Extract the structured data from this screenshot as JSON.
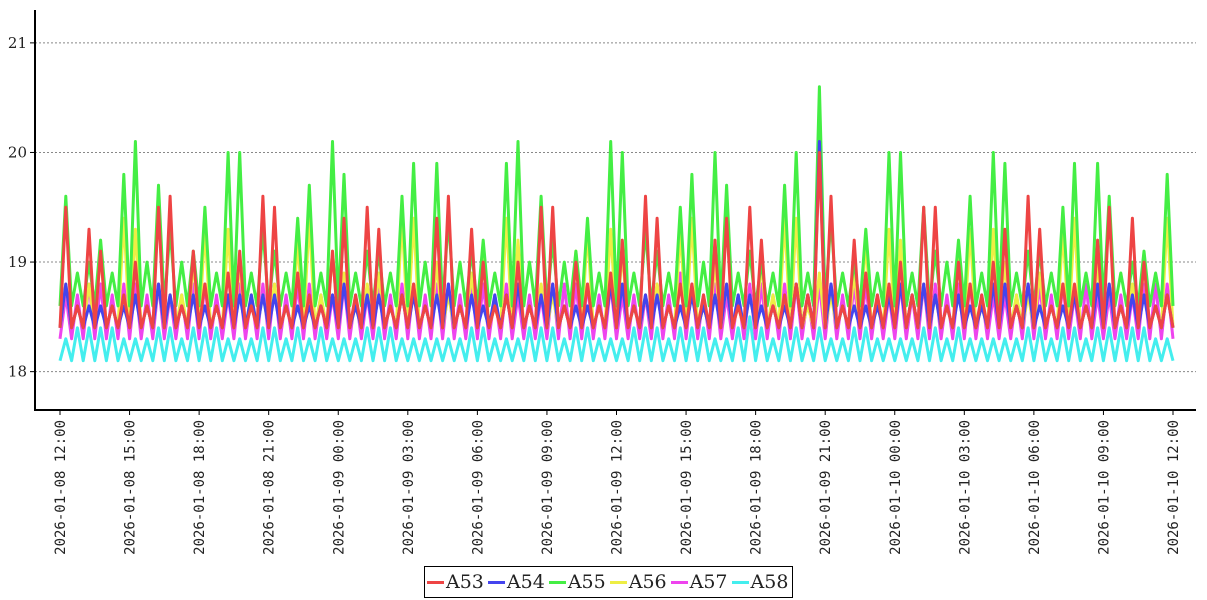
{
  "chart_data": {
    "type": "line",
    "title": "",
    "xlabel": "",
    "ylabel": "",
    "ylim": [
      17.65,
      21.3
    ],
    "y_ticks": [
      18,
      19,
      20,
      21
    ],
    "y_tick_labels": [
      "18",
      "19",
      "20",
      "21"
    ],
    "x_tick_labels": [
      "2026-01-08 12:00",
      "2026-01-08 15:00",
      "2026-01-08 18:00",
      "2026-01-08 21:00",
      "2026-01-09 00:00",
      "2026-01-09 03:00",
      "2026-01-09 06:00",
      "2026-01-09 09:00",
      "2026-01-09 12:00",
      "2026-01-09 15:00",
      "2026-01-09 18:00",
      "2026-01-09 21:00",
      "2026-01-10 00:00",
      "2026-01-10 03:00",
      "2026-01-10 06:00",
      "2026-01-10 09:00",
      "2026-01-10 12:00"
    ],
    "x_range_hours": [
      0,
      48
    ],
    "sample_interval_minutes": 15,
    "grid": "horizontal",
    "legend_position": "bottom-center",
    "series": [
      {
        "name": "A53",
        "color": "#ee4444",
        "base": 18.6,
        "low": 18.4,
        "amplitude": 1.1,
        "noise": 0.1
      },
      {
        "name": "A54",
        "color": "#4444ee",
        "base": 18.6,
        "low": 18.4,
        "amplitude": 0.2,
        "noise": 0.1
      },
      {
        "name": "A55",
        "color": "#44ee44",
        "base": 18.9,
        "low": 18.6,
        "amplitude": 1.3,
        "noise": 0.1
      },
      {
        "name": "A56",
        "color": "#eeee44",
        "base": 18.6,
        "low": 18.4,
        "amplitude": 0.9,
        "noise": 0.1
      },
      {
        "name": "A57",
        "color": "#ee44ee",
        "base": 18.7,
        "low": 18.3,
        "amplitude": 0.1,
        "noise": 0.1
      },
      {
        "name": "A58",
        "color": "#44eeee",
        "base": 18.3,
        "low": 18.1,
        "amplitude": 0.1,
        "noise": 0.1
      }
    ],
    "peak_annotation": {
      "x_hours": 32.7,
      "A55": 20.6,
      "A54": 20.1,
      "A53": 20.0
    }
  }
}
